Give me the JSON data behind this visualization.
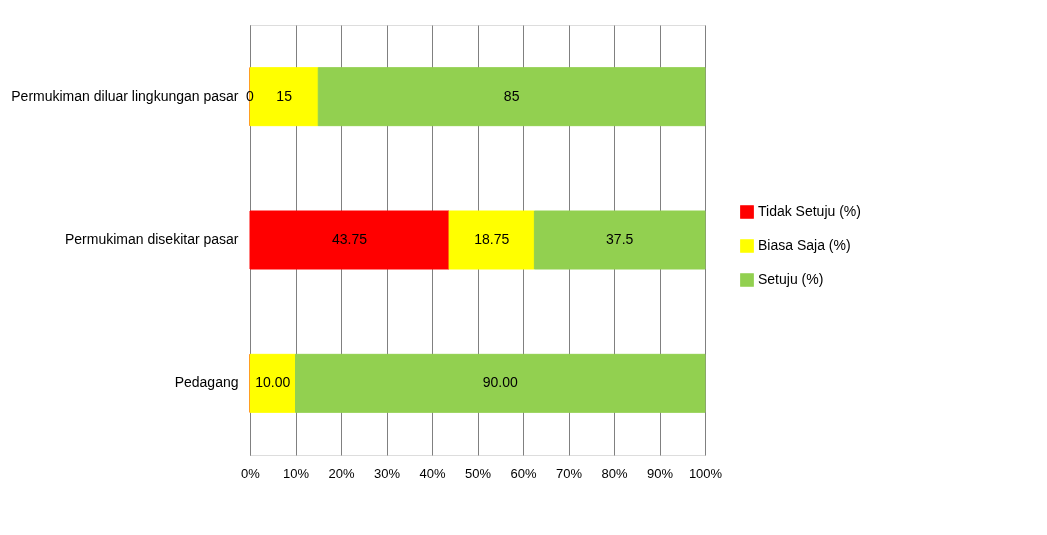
{
  "chart_data": {
    "type": "bar",
    "orientation": "horizontal",
    "stacked": true,
    "categories": [
      "Permukiman diluar lingkungan pasar",
      "Permukiman disekitar pasar",
      "Pedagang"
    ],
    "series": [
      {
        "name": "Tidak Setuju (%)",
        "color": "#ff0000",
        "values": [
          0,
          43.75,
          0
        ],
        "value_labels": [
          "0",
          "43.75",
          null
        ]
      },
      {
        "name": "Biasa Saja (%)",
        "color": "#ffff00",
        "values": [
          15,
          18.75,
          10
        ],
        "value_labels": [
          "15",
          "18.75",
          "10.00"
        ]
      },
      {
        "name": "Setuju (%)",
        "color": "#92d050",
        "values": [
          85,
          37.5,
          90
        ],
        "value_labels": [
          "85",
          "37.5",
          "90.00"
        ]
      }
    ],
    "xlim": [
      0,
      100
    ],
    "xticks": [
      {
        "value": 0,
        "label": "0%"
      },
      {
        "value": 10,
        "label": "10%"
      },
      {
        "value": 20,
        "label": "20%"
      },
      {
        "value": 30,
        "label": "30%"
      },
      {
        "value": 40,
        "label": "40%"
      },
      {
        "value": 50,
        "label": "50%"
      },
      {
        "value": 60,
        "label": "60%"
      },
      {
        "value": 70,
        "label": "70%"
      },
      {
        "value": 80,
        "label": "80%"
      },
      {
        "value": 90,
        "label": "90%"
      },
      {
        "value": 100,
        "label": "100%"
      }
    ],
    "grid": "x",
    "legend": "right"
  }
}
